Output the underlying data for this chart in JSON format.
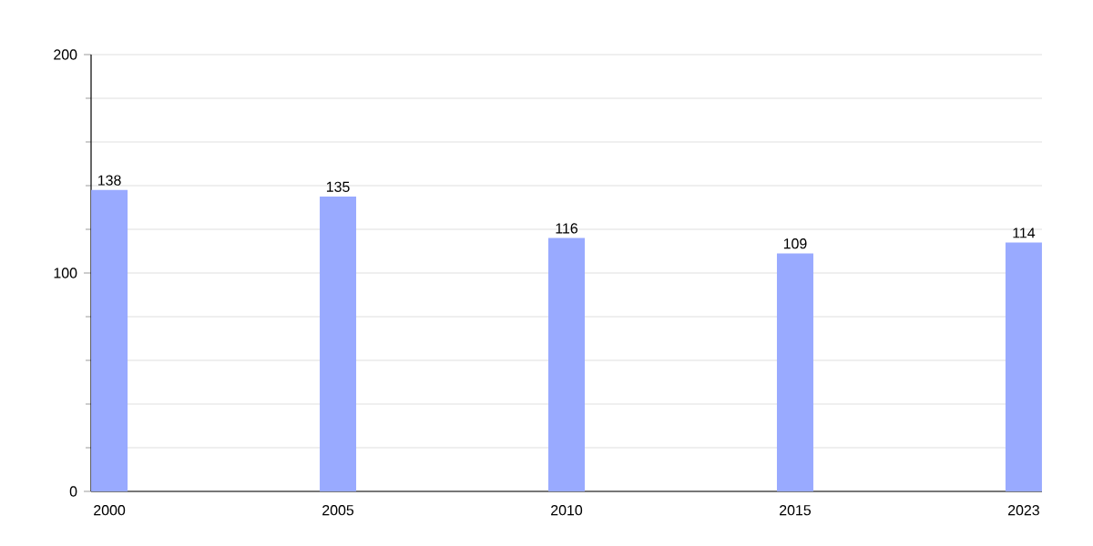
{
  "chart_data": {
    "type": "bar",
    "categories": [
      "2000",
      "2005",
      "2010",
      "2015",
      "2023"
    ],
    "values": [
      138,
      135,
      116,
      109,
      114
    ],
    "color": "#99aaff",
    "data_labels": true,
    "grid": "y",
    "ylim": [
      0,
      200
    ],
    "yticks": [
      0,
      {
        "value": 20,
        "label": null
      },
      {
        "value": 40,
        "label": null
      },
      {
        "value": 60,
        "label": null
      },
      {
        "value": 80,
        "label": null
      },
      100,
      {
        "value": 120,
        "label": null
      },
      {
        "value": 140,
        "label": null
      },
      {
        "value": 160,
        "label": null
      },
      {
        "value": 180,
        "label": null
      },
      200
    ]
  }
}
